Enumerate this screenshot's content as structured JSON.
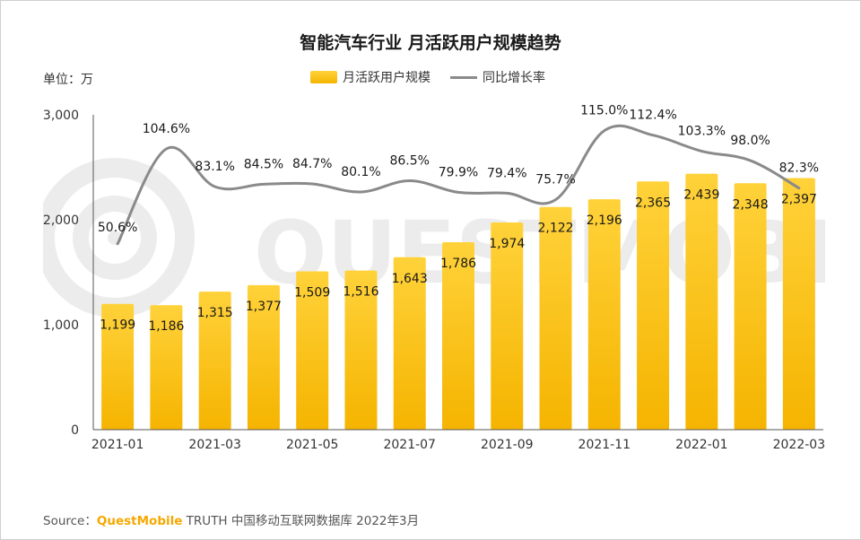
{
  "title": "智能汽车行业 月活跃用户规模趋势",
  "unit": "单位：万",
  "legend": {
    "bar_label": "月活跃用户规模",
    "line_label": "同比增长率"
  },
  "source": {
    "prefix": "Source：",
    "brand": "QuestMobile",
    "rest": " TRUTH 中国移动互联网数据库 2022年3月"
  },
  "watermark": "QUESTMOBILE",
  "colors": {
    "bar_top": "#ffd23a",
    "bar_bottom": "#f5b400",
    "line": "#8a8a8a",
    "axis": "#333333"
  },
  "chart_data": {
    "type": "bar",
    "title": "智能汽车行业 月活跃用户规模趋势",
    "ylabel": "单位：万",
    "ylim": [
      0,
      3000
    ],
    "yticks": [
      0,
      1000,
      2000,
      3000
    ],
    "ytick_labels": [
      "0",
      "1,000",
      "2,000",
      "3,000"
    ],
    "categories": [
      "2021-01",
      "2021-02",
      "2021-03",
      "2021-04",
      "2021-05",
      "2021-06",
      "2021-07",
      "2021-08",
      "2021-09",
      "2021-10",
      "2021-11",
      "2021-12",
      "2022-01",
      "2022-02",
      "2022-03"
    ],
    "xtick_labels": [
      "2021-01",
      "",
      "2021-03",
      "",
      "2021-05",
      "",
      "2021-07",
      "",
      "2021-09",
      "",
      "2021-11",
      "",
      "2022-01",
      "",
      "2022-03"
    ],
    "series": [
      {
        "name": "月活跃用户规模",
        "kind": "bar",
        "values": [
          1199,
          1186,
          1315,
          1377,
          1509,
          1516,
          1643,
          1786,
          1974,
          2122,
          2196,
          2365,
          2439,
          2348,
          2397
        ],
        "labels": [
          "1,199",
          "1,186",
          "1,315",
          "1,377",
          "1,509",
          "1,516",
          "1,643",
          "1,786",
          "1,974",
          "2,122",
          "2,196",
          "2,365",
          "2,439",
          "2,348",
          "2,397"
        ]
      },
      {
        "name": "同比增长率",
        "kind": "line",
        "values": [
          50.6,
          104.6,
          83.1,
          84.5,
          84.7,
          80.1,
          86.5,
          79.9,
          79.4,
          75.7,
          115.0,
          112.4,
          103.3,
          98.0,
          82.3
        ],
        "labels": [
          "50.6%",
          "104.6%",
          "83.1%",
          "84.5%",
          "84.7%",
          "80.1%",
          "86.5%",
          "79.9%",
          "79.4%",
          "75.7%",
          "115.0%",
          "112.4%",
          "103.3%",
          "98.0%",
          "82.3%"
        ]
      }
    ]
  }
}
